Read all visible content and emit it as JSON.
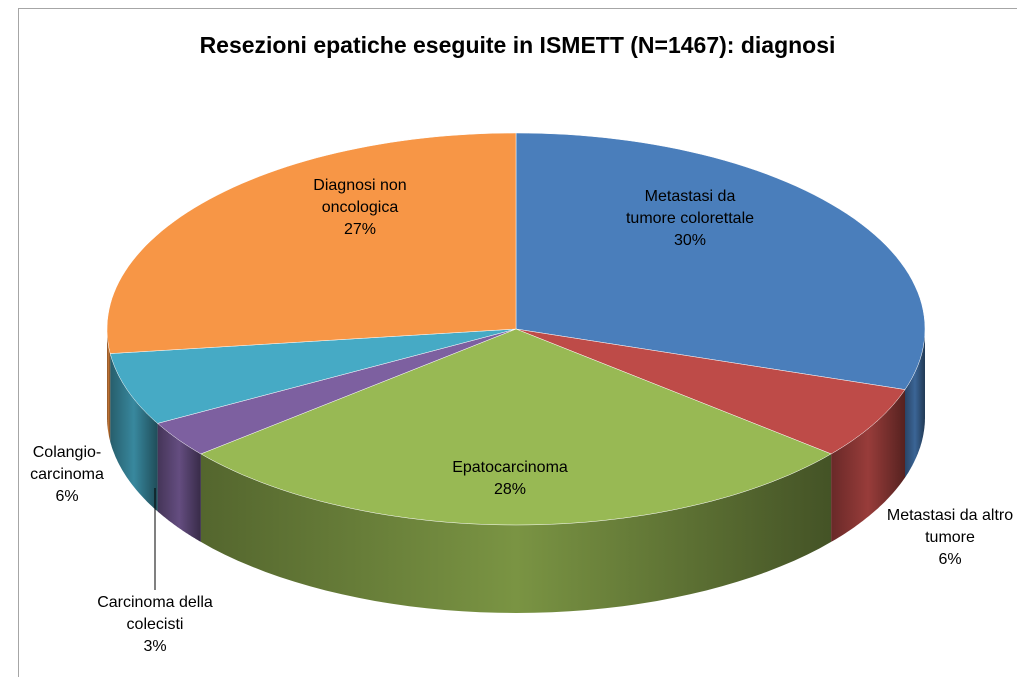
{
  "chart_data": {
    "type": "pie3d",
    "title": "Resezioni epatiche eseguite in ISMETT (N=1467): diagnosi",
    "categories": [
      "Metastasi da tumore colorettale",
      "Metastasi da altro tumore",
      "Epatocarcinoma",
      "Carcinoma della colecisti",
      "Colangio-carcinoma",
      "Diagnosi non oncologica"
    ],
    "values": [
      30,
      6,
      28,
      3,
      6,
      27
    ],
    "value_labels": [
      "30%",
      "6%",
      "28%",
      "3%",
      "6%",
      "27%"
    ],
    "colors": [
      "#4a7ebb",
      "#be4b48",
      "#98b954",
      "#7d60a0",
      "#46aac5",
      "#f79646"
    ]
  }
}
